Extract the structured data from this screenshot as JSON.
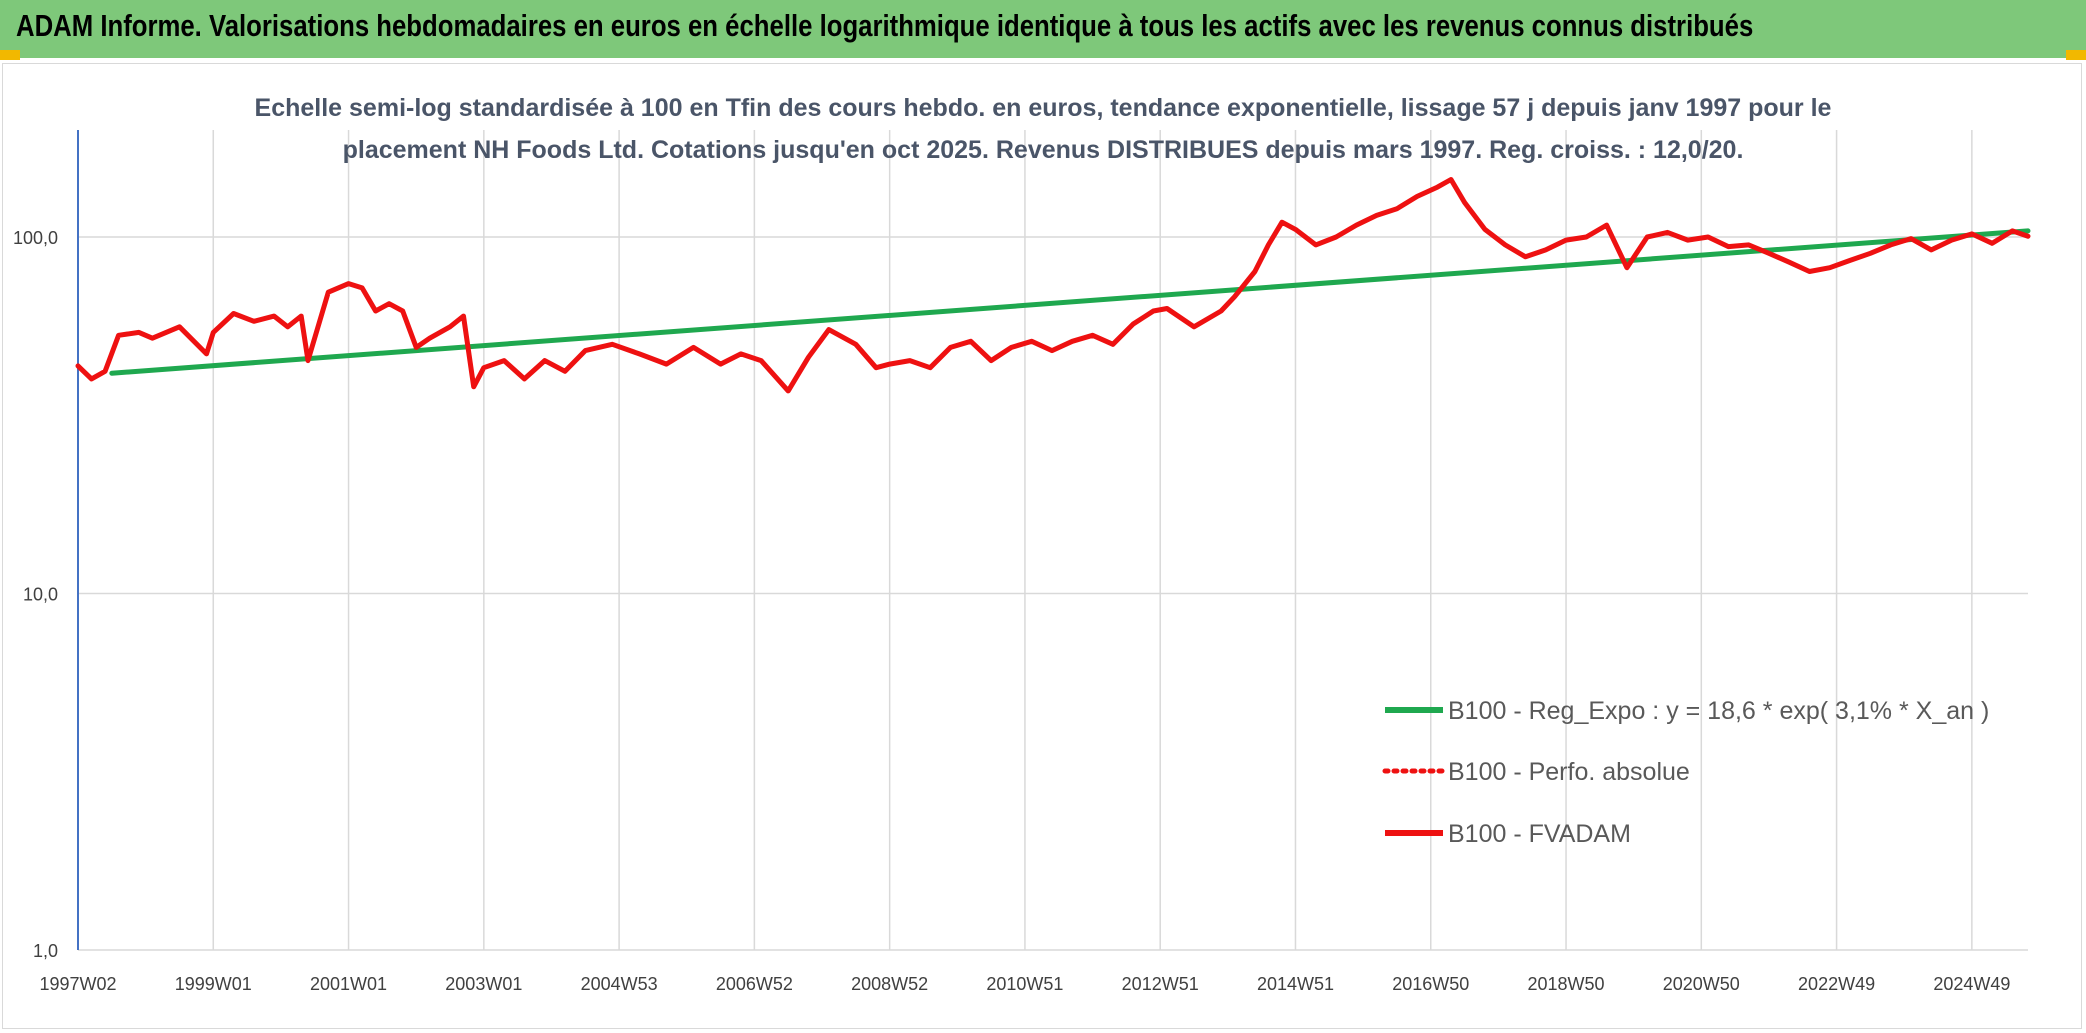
{
  "header": {
    "title": "ADAM Informe. Valorisations hebdomadaires en euros en échelle logarithmique identique à tous les actifs avec les revenus connus distribués"
  },
  "colors": {
    "banner": "#7ec87a",
    "corner": "#f2b800",
    "regression": "#1fa84f",
    "fvadam": "#ee1111",
    "perfo": "#ee1111",
    "grid": "#d9d9d9",
    "axis": "#4472c4"
  },
  "chart_data": {
    "type": "line",
    "title_lines": [
      "Echelle semi-log standardisée à 100 en Tfin des cours hebdo. en euros, tendance exponentielle, lissage 57 j depuis janv 1997 pour le",
      "placement NH Foods Ltd. Cotations jusqu'en oct 2025. Revenus DISTRIBUES depuis mars 1997. Reg. croiss. : 12,0/20."
    ],
    "y_scale": "log",
    "ylim": [
      1,
      200
    ],
    "y_ticks": [
      {
        "value": 1,
        "label": "1,0"
      },
      {
        "value": 10,
        "label": "10,0"
      },
      {
        "value": 100,
        "label": "100,0"
      }
    ],
    "xlim": [
      1997.0,
      2025.83
    ],
    "x_ticks": [
      {
        "value": 1997.0,
        "label": "1997W02"
      },
      {
        "value": 1999.0,
        "label": "1999W01"
      },
      {
        "value": 2001.0,
        "label": "2001W01"
      },
      {
        "value": 2003.0,
        "label": "2003W01"
      },
      {
        "value": 2005.0,
        "label": "2004W53"
      },
      {
        "value": 2007.0,
        "label": "2006W52"
      },
      {
        "value": 2009.0,
        "label": "2008W52"
      },
      {
        "value": 2011.0,
        "label": "2010W51"
      },
      {
        "value": 2013.0,
        "label": "2012W51"
      },
      {
        "value": 2015.0,
        "label": "2014W51"
      },
      {
        "value": 2017.0,
        "label": "2016W50"
      },
      {
        "value": 2019.0,
        "label": "2018W50"
      },
      {
        "value": 2021.0,
        "label": "2020W50"
      },
      {
        "value": 2023.0,
        "label": "2022W49"
      },
      {
        "value": 2025.0,
        "label": "2024W49"
      }
    ],
    "grid": true,
    "legend_position": "bottom-right",
    "series": [
      {
        "name": "B100 - Reg_Expo : y = 18,6 * exp( 3,1% * X_an )",
        "style": "solid",
        "color": "#1fa84f",
        "x": [
          1997.5,
          2025.83
        ],
        "y": [
          41.5,
          104
        ]
      },
      {
        "name": "B100 - Perfo. absolue",
        "style": "dotted",
        "color": "#ee1111",
        "x": [],
        "y": []
      },
      {
        "name": "B100 - FVADAM",
        "style": "solid",
        "color": "#ee1111",
        "x": [
          1997.0,
          1997.2,
          1997.4,
          1997.6,
          1997.9,
          1998.1,
          1998.5,
          1998.9,
          1999.0,
          1999.3,
          1999.6,
          1999.9,
          2000.1,
          2000.3,
          2000.4,
          2000.7,
          2001.0,
          2001.2,
          2001.4,
          2001.6,
          2001.8,
          2002.0,
          2002.2,
          2002.5,
          2002.7,
          2002.85,
          2003.0,
          2003.3,
          2003.6,
          2003.9,
          2004.2,
          2004.5,
          2004.9,
          2005.3,
          2005.7,
          2006.1,
          2006.5,
          2006.8,
          2007.1,
          2007.5,
          2007.8,
          2008.1,
          2008.5,
          2008.8,
          2009.0,
          2009.3,
          2009.6,
          2009.9,
          2010.2,
          2010.5,
          2010.8,
          2011.1,
          2011.4,
          2011.7,
          2012.0,
          2012.3,
          2012.6,
          2012.9,
          2013.1,
          2013.5,
          2013.9,
          2014.1,
          2014.4,
          2014.6,
          2014.8,
          2015.0,
          2015.3,
          2015.6,
          2015.9,
          2016.2,
          2016.5,
          2016.8,
          2017.1,
          2017.3,
          2017.5,
          2017.8,
          2018.1,
          2018.4,
          2018.7,
          2019.0,
          2019.3,
          2019.6,
          2019.9,
          2020.2,
          2020.5,
          2020.8,
          2021.1,
          2021.4,
          2021.7,
          2022.0,
          2022.3,
          2022.6,
          2022.9,
          2023.2,
          2023.5,
          2023.8,
          2024.1,
          2024.4,
          2024.7,
          2025.0,
          2025.3,
          2025.6,
          2025.83
        ],
        "y": [
          43.5,
          40,
          42,
          53,
          54,
          52,
          56,
          47,
          54,
          61,
          58,
          60,
          56,
          60,
          45,
          70,
          74,
          72,
          62,
          65,
          62,
          49,
          52,
          56,
          60,
          38,
          43,
          45,
          40,
          45,
          42,
          48,
          50,
          47,
          44,
          49,
          44,
          47,
          45,
          37,
          46,
          55,
          50,
          43,
          44,
          45,
          43,
          49,
          51,
          45,
          49,
          51,
          48,
          51,
          53,
          50,
          57,
          62,
          63,
          56,
          62,
          68,
          80,
          95,
          110,
          105,
          95,
          100,
          108,
          115,
          120,
          130,
          138,
          145,
          125,
          105,
          95,
          88,
          92,
          98,
          100,
          108,
          82,
          100,
          103,
          98,
          100,
          94,
          95,
          90,
          85,
          80,
          82,
          86,
          90,
          95,
          99,
          92,
          98,
          102,
          96,
          104,
          100.5
        ]
      }
    ]
  }
}
